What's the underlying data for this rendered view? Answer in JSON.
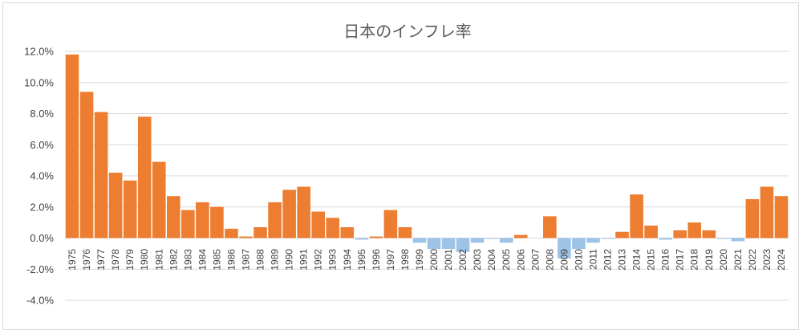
{
  "chart_data": {
    "type": "bar",
    "title": "日本のインフレ率",
    "xlabel": "",
    "ylabel": "",
    "ylim": [
      -0.04,
      0.12
    ],
    "yticks": [
      "12.0%",
      "10.0%",
      "8.0%",
      "6.0%",
      "4.0%",
      "2.0%",
      "0.0%",
      "-2.0%",
      "-4.0%"
    ],
    "ytick_values": [
      0.12,
      0.1,
      0.08,
      0.06,
      0.04,
      0.02,
      0.0,
      -0.02,
      -0.04
    ],
    "grid": true,
    "legend": "none",
    "colors": {
      "positive": "#ed7d31",
      "negative": "#9dc3e6"
    },
    "categories": [
      "1975",
      "1976",
      "1977",
      "1978",
      "1979",
      "1980",
      "1981",
      "1982",
      "1983",
      "1984",
      "1985",
      "1986",
      "1987",
      "1988",
      "1989",
      "1990",
      "1991",
      "1992",
      "1993",
      "1994",
      "1995",
      "1996",
      "1997",
      "1998",
      "1999",
      "2000",
      "2001",
      "2002",
      "2003",
      "2004",
      "2005",
      "2006",
      "2007",
      "2008",
      "2009",
      "2010",
      "2011",
      "2012",
      "2013",
      "2014",
      "2015",
      "2016",
      "2017",
      "2018",
      "2019",
      "2020",
      "2021",
      "2022",
      "2023",
      "2024"
    ],
    "values": [
      0.118,
      0.094,
      0.081,
      0.042,
      0.037,
      0.078,
      0.049,
      0.027,
      0.018,
      0.023,
      0.02,
      0.006,
      0.001,
      0.007,
      0.023,
      0.031,
      0.033,
      0.017,
      0.013,
      0.007,
      -0.001,
      0.001,
      0.018,
      0.007,
      -0.003,
      -0.007,
      -0.007,
      -0.009,
      -0.003,
      -0.0005,
      -0.003,
      0.002,
      0.0,
      0.014,
      -0.013,
      -0.007,
      -0.003,
      -0.0005,
      0.004,
      0.028,
      0.008,
      -0.001,
      0.005,
      0.01,
      0.005,
      -0.0005,
      -0.002,
      0.025,
      0.033,
      0.027
    ]
  }
}
